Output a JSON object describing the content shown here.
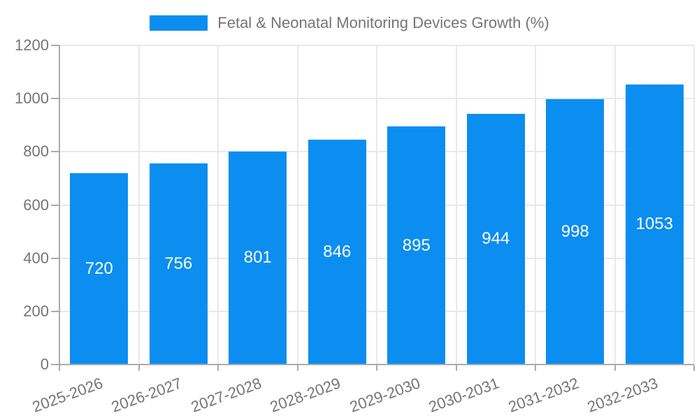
{
  "chart_data": {
    "type": "bar",
    "title": "Fetal & Neonatal Monitoring Devices Growth (%)",
    "categories": [
      "2025-2026",
      "2026-2027",
      "2027-2028",
      "2028-2029",
      "2029-2030",
      "2030-2031",
      "2031-2032",
      "2032-2033"
    ],
    "values": [
      720,
      756,
      801,
      846,
      895,
      944,
      998,
      1053
    ],
    "xlabel": "",
    "ylabel": "",
    "ylim": [
      0,
      1200
    ],
    "yticks": [
      0,
      200,
      400,
      600,
      800,
      1000,
      1200
    ],
    "grid": "on",
    "legend_position": "top-center",
    "bar_label_color": "#ffffff",
    "bar_color": "#0b8ef0",
    "grid_color": "#e8e8e8",
    "axis_color": "#ababab",
    "text_color": "#757575"
  }
}
